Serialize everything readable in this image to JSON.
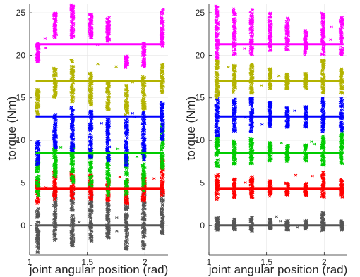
{
  "chart_data": [
    {
      "type": "scatter",
      "xlabel": "joint angular position (rad)",
      "ylabel": "torque (Nm)",
      "xlim": [
        1.0,
        2.2
      ],
      "ylim": [
        -3.5,
        26.0
      ],
      "xticks": [
        1,
        1.5,
        2
      ],
      "yticks": [
        0,
        5,
        10,
        15,
        20,
        25
      ],
      "grid": true,
      "x_positions": [
        1.07,
        1.22,
        1.37,
        1.53,
        1.68,
        1.84,
        1.99,
        2.15
      ],
      "series": [
        {
          "color": "#555555",
          "reference": 0.0,
          "level_low": [
            -3.2,
            -1.8,
            -2.5,
            -2.0,
            -1.5,
            -3.0,
            -2.8,
            -1.0
          ],
          "level_high": [
            2.0,
            4.5,
            4.0,
            3.8,
            3.0,
            3.5,
            4.0,
            4.2
          ]
        },
        {
          "color": "#ff0000",
          "reference": 4.3,
          "level_low": [
            2.5,
            3.0,
            3.0,
            3.0,
            2.8,
            2.5,
            2.8,
            3.5
          ],
          "level_high": [
            5.5,
            6.5,
            6.5,
            6.0,
            5.5,
            5.5,
            6.0,
            8.0
          ]
        },
        {
          "color": "#00cc00",
          "reference": 8.5,
          "level_low": [
            3.5,
            5.5,
            5.0,
            4.5,
            3.5,
            3.5,
            4.0,
            6.5
          ],
          "level_high": [
            7.5,
            9.5,
            9.5,
            9.0,
            8.5,
            8.5,
            9.0,
            12.0
          ]
        },
        {
          "color": "#0000ff",
          "reference": 12.8,
          "level_low": [
            7.0,
            9.0,
            8.5,
            8.0,
            7.5,
            7.0,
            7.5,
            10.0
          ],
          "level_high": [
            10.0,
            13.0,
            14.0,
            13.5,
            12.5,
            12.5,
            13.5,
            14.5
          ]
        },
        {
          "color": "#b3b300",
          "reference": 17.0,
          "level_low": [
            13.0,
            15.0,
            14.5,
            14.0,
            13.5,
            13.0,
            13.5,
            15.5
          ],
          "level_high": [
            16.0,
            18.5,
            19.5,
            18.0,
            17.0,
            16.5,
            17.5,
            19.0
          ]
        },
        {
          "color": "#ff00ff",
          "reference": 21.3,
          "level_low": [
            19.0,
            22.0,
            22.0,
            22.0,
            21.5,
            18.5,
            18.5,
            21.0
          ],
          "level_high": [
            21.5,
            25.0,
            26.0,
            25.0,
            24.5,
            20.0,
            21.5,
            25.5
          ]
        }
      ]
    },
    {
      "type": "scatter",
      "xlabel": "joint angular position (rad)",
      "ylabel": "torque (Nm)",
      "xlim": [
        1.0,
        2.2
      ],
      "ylim": [
        -3.5,
        26.0
      ],
      "xticks": [
        1,
        1.5,
        2
      ],
      "yticks": [
        0,
        5,
        10,
        15,
        20,
        25
      ],
      "grid": true,
      "x_positions": [
        1.07,
        1.22,
        1.37,
        1.53,
        1.68,
        1.84,
        1.99,
        2.15
      ],
      "series": [
        {
          "color": "#555555",
          "reference": 0.0,
          "level_low": [
            -0.6,
            -0.6,
            -0.7,
            -0.5,
            -0.6,
            -0.5,
            -0.7,
            -0.6
          ],
          "level_high": [
            1.0,
            0.8,
            1.0,
            0.8,
            0.6,
            0.6,
            1.6,
            0.6
          ]
        },
        {
          "color": "#ff0000",
          "reference": 4.3,
          "level_low": [
            3.0,
            3.2,
            3.2,
            3.3,
            3.5,
            3.5,
            3.2,
            3.3
          ],
          "level_high": [
            6.0,
            5.5,
            5.8,
            5.3,
            5.0,
            5.0,
            6.3,
            5.5
          ]
        },
        {
          "color": "#00cc00",
          "reference": 8.5,
          "level_low": [
            6.8,
            7.2,
            7.2,
            7.5,
            7.5,
            7.5,
            7.0,
            7.2
          ],
          "level_high": [
            10.5,
            10.0,
            10.3,
            9.8,
            9.5,
            9.5,
            10.5,
            11.0
          ]
        },
        {
          "color": "#0000ff",
          "reference": 12.8,
          "level_low": [
            10.5,
            11.0,
            11.0,
            11.5,
            11.5,
            11.5,
            11.0,
            11.0
          ],
          "level_high": [
            15.5,
            15.0,
            15.0,
            14.5,
            14.0,
            14.0,
            15.0,
            15.0
          ]
        },
        {
          "color": "#b3b300",
          "reference": 17.0,
          "level_low": [
            15.0,
            15.5,
            15.5,
            16.0,
            16.0,
            16.0,
            15.5,
            15.5
          ],
          "level_high": [
            19.5,
            19.0,
            19.0,
            18.5,
            18.0,
            18.0,
            19.5,
            18.5
          ]
        },
        {
          "color": "#ff00ff",
          "reference": 21.3,
          "level_low": [
            19.5,
            20.0,
            20.0,
            20.5,
            20.5,
            20.0,
            20.0,
            20.0
          ],
          "level_high": [
            26.0,
            25.5,
            25.5,
            25.0,
            24.5,
            23.0,
            25.0,
            24.5
          ]
        }
      ]
    }
  ]
}
